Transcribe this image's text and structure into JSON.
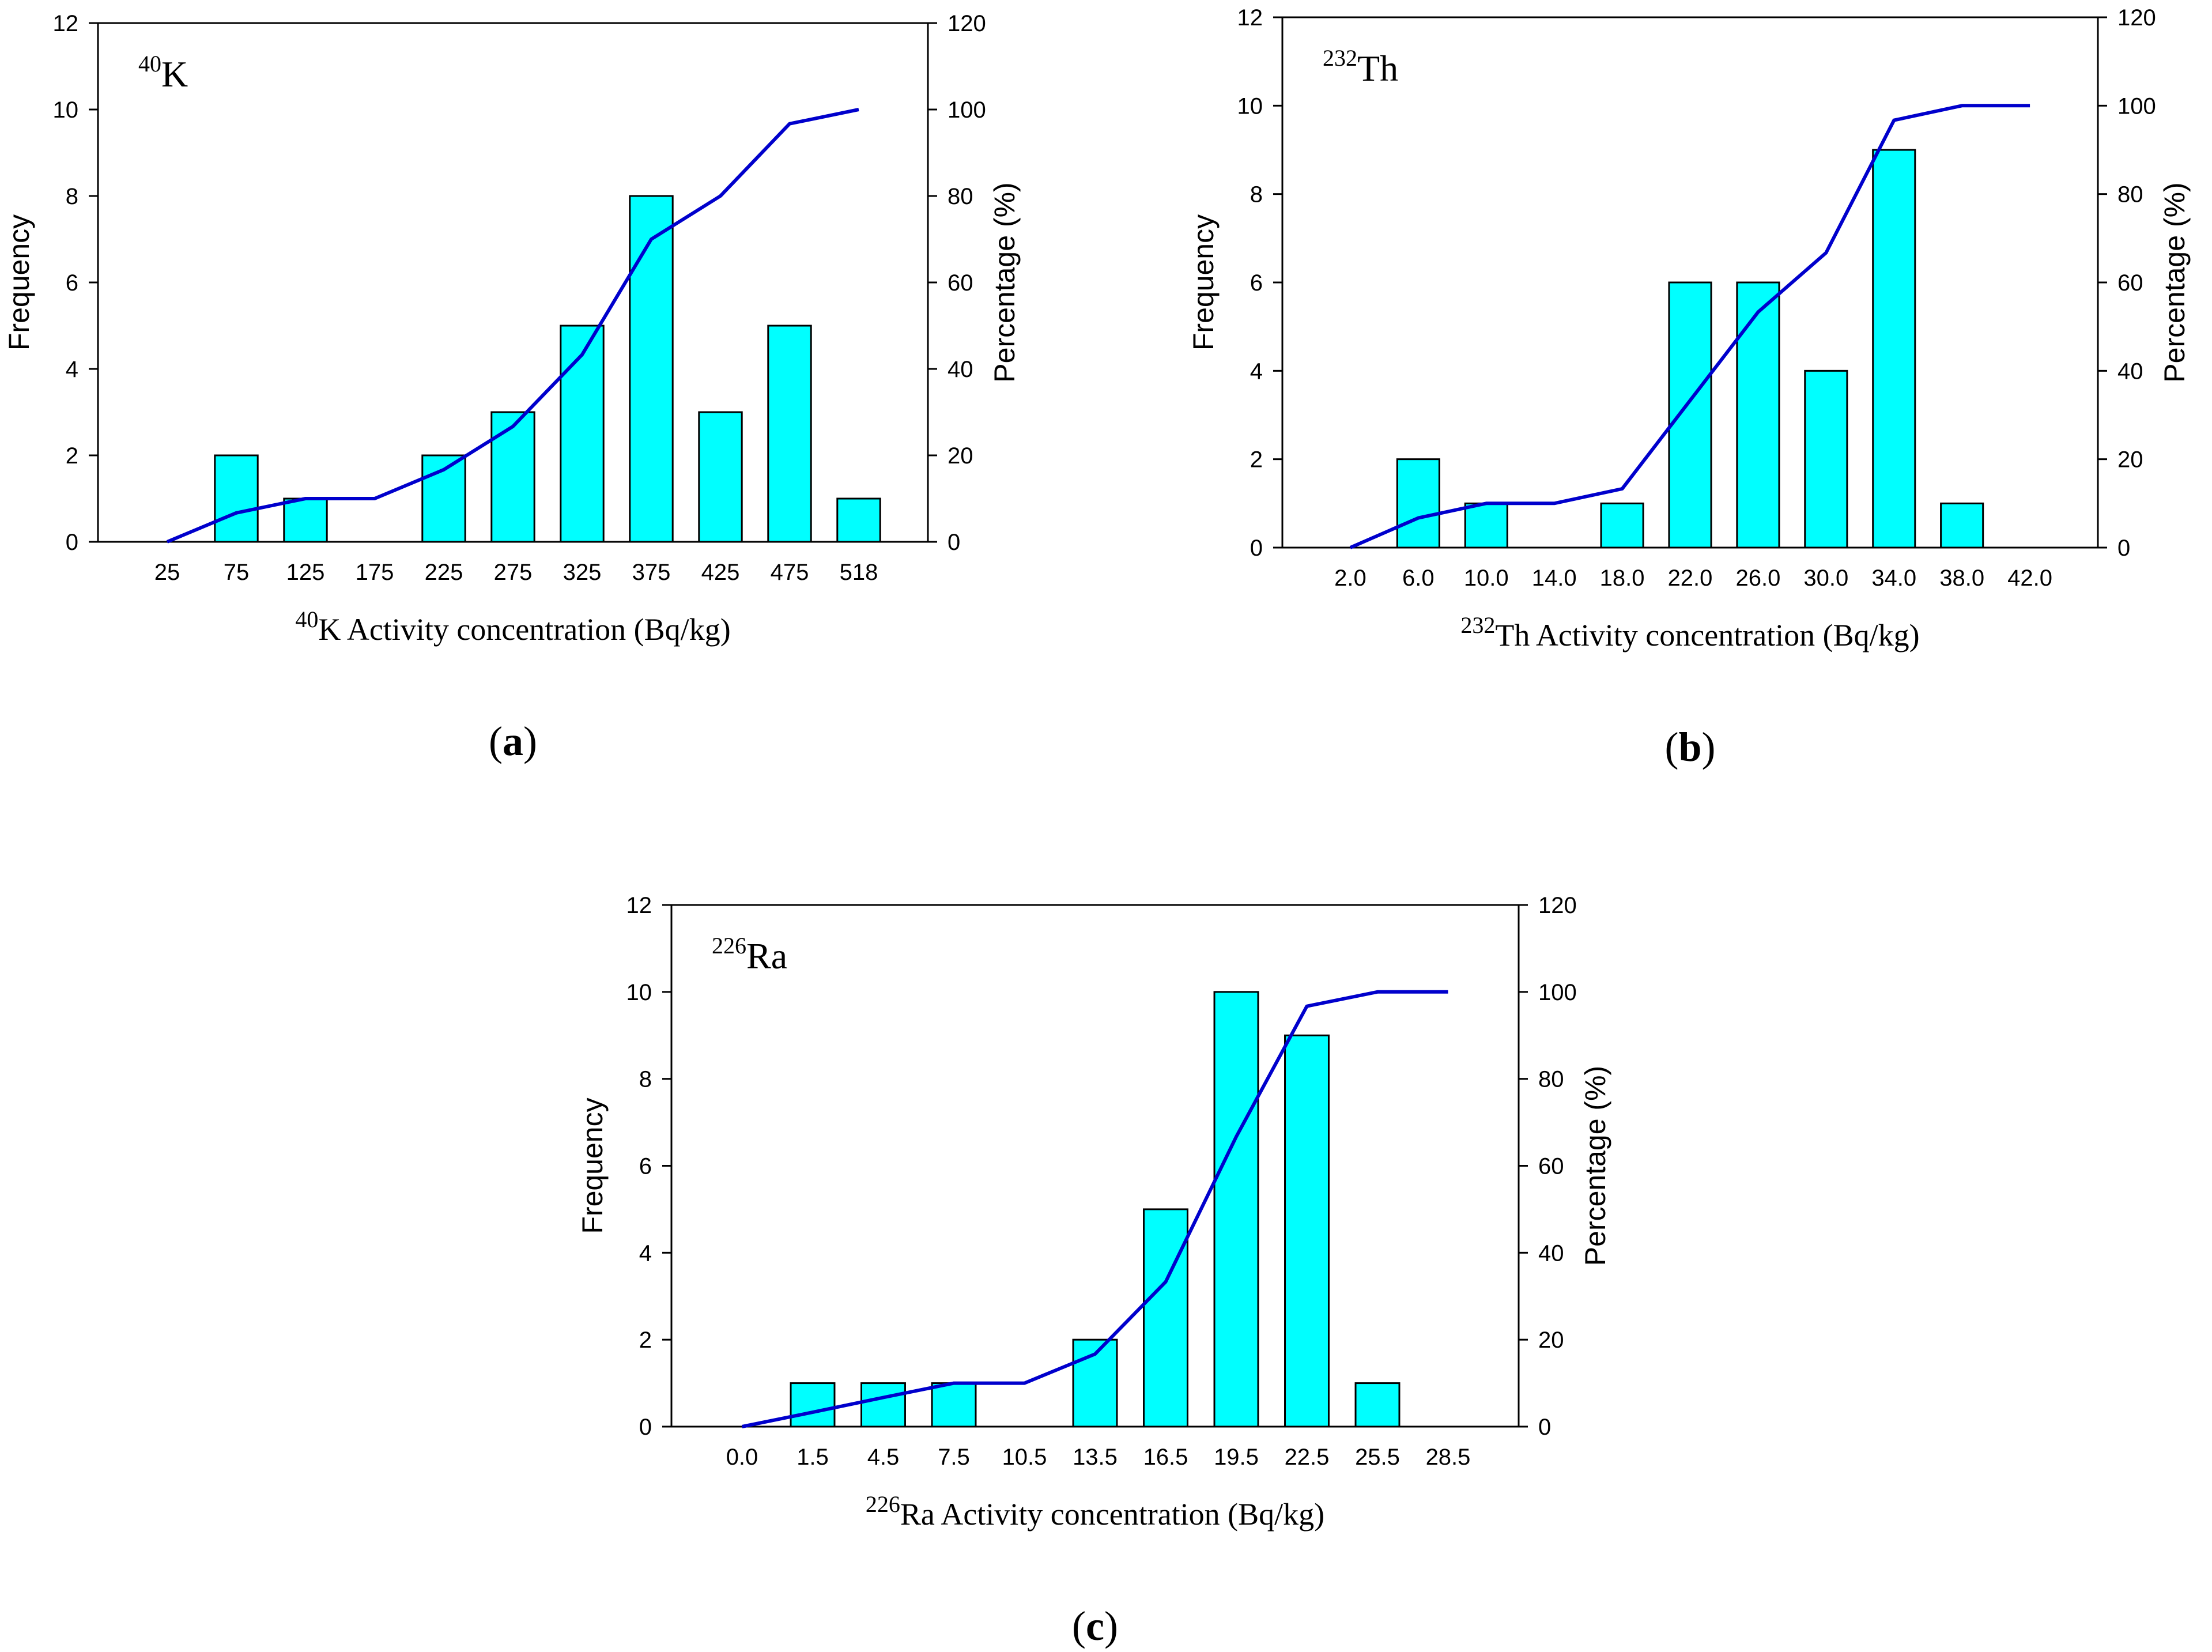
{
  "colors": {
    "bar": "#00FFFF",
    "line": "#0000CC"
  },
  "chart_data": [
    {
      "id": "a",
      "type": "bar",
      "panel_label": "a",
      "isotope": {
        "mass": "40",
        "symbol": "K"
      },
      "xlabel": {
        "sup": "40",
        "text": "K Activity concentration (Bq/kg)"
      },
      "ylabel_left": "Frequency",
      "ylabel_right": "Percentage (%)",
      "categories": [
        "25",
        "75",
        "125",
        "175",
        "225",
        "275",
        "325",
        "375",
        "425",
        "475",
        "518"
      ],
      "values": [
        0,
        2,
        1,
        0,
        2,
        3,
        5,
        8,
        3,
        5,
        1
      ],
      "cumulative_percent": [
        0,
        6.7,
        10,
        10,
        16.7,
        26.7,
        43.3,
        70,
        80,
        96.7,
        100
      ],
      "ylim": [
        0,
        12
      ],
      "y_ticks": [
        "0",
        "2",
        "4",
        "6",
        "8",
        "10",
        "12"
      ],
      "y2lim": [
        0,
        120
      ],
      "y2_ticks": [
        "0",
        "20",
        "40",
        "60",
        "80",
        "100",
        "120"
      ]
    },
    {
      "id": "b",
      "type": "bar",
      "panel_label": "b",
      "isotope": {
        "mass": "232",
        "symbol": "Th"
      },
      "xlabel": {
        "sup": "232",
        "text": "Th Activity concentration (Bq/kg)"
      },
      "ylabel_left": "Frequency",
      "ylabel_right": "Percentage (%)",
      "categories": [
        "2.0",
        "6.0",
        "10.0",
        "14.0",
        "18.0",
        "22.0",
        "26.0",
        "30.0",
        "34.0",
        "38.0",
        "42.0"
      ],
      "values": [
        0,
        2,
        1,
        0,
        1,
        6,
        6,
        4,
        9,
        1,
        0
      ],
      "cumulative_percent": [
        0,
        6.7,
        10,
        10,
        13.3,
        33.3,
        53.3,
        66.7,
        96.7,
        100,
        100
      ],
      "ylim": [
        0,
        12
      ],
      "y_ticks": [
        "0",
        "2",
        "4",
        "6",
        "8",
        "10",
        "12"
      ],
      "y2lim": [
        0,
        120
      ],
      "y2_ticks": [
        "0",
        "20",
        "40",
        "60",
        "80",
        "100",
        "120"
      ]
    },
    {
      "id": "c",
      "type": "bar",
      "panel_label": "c",
      "isotope": {
        "mass": "226",
        "symbol": "Ra"
      },
      "xlabel": {
        "sup": "226",
        "text": "Ra Activity concentration (Bq/kg)"
      },
      "ylabel_left": "Frequency",
      "ylabel_right": "Percentage (%)",
      "categories": [
        "0.0",
        "1.5",
        "4.5",
        "7.5",
        "10.5",
        "13.5",
        "16.5",
        "19.5",
        "22.5",
        "25.5",
        "28.5"
      ],
      "values": [
        0,
        1,
        1,
        1,
        0,
        2,
        5,
        10,
        9,
        1,
        0
      ],
      "cumulative_percent": [
        0,
        3.3,
        6.7,
        10,
        10,
        16.7,
        33.3,
        66.7,
        96.7,
        100,
        100
      ],
      "ylim": [
        0,
        12
      ],
      "y_ticks": [
        "0",
        "2",
        "4",
        "6",
        "8",
        "10",
        "12"
      ],
      "y2lim": [
        0,
        120
      ],
      "y2_ticks": [
        "0",
        "20",
        "40",
        "60",
        "80",
        "100",
        "120"
      ]
    }
  ]
}
